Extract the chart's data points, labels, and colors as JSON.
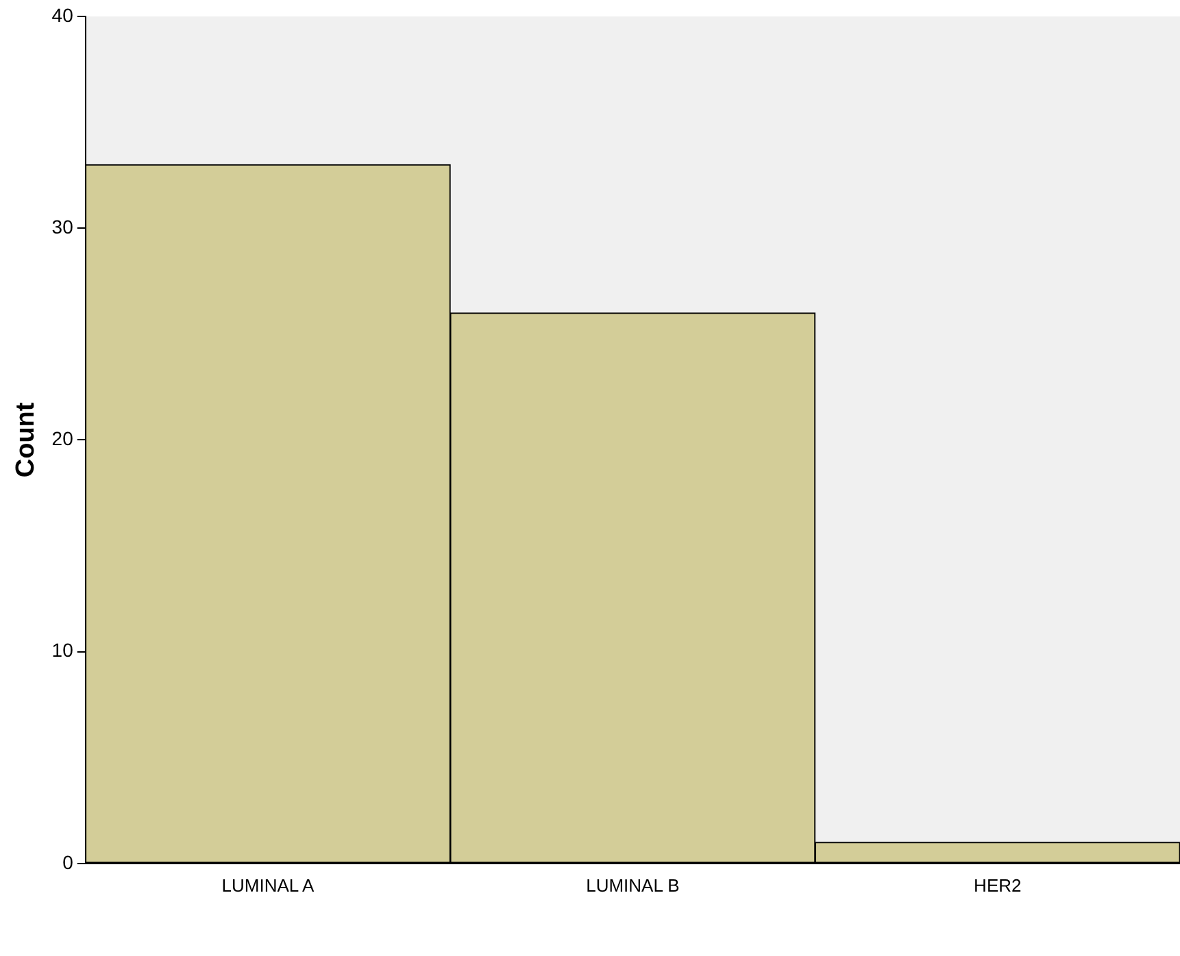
{
  "chart_data": {
    "type": "bar",
    "ylabel": "Count",
    "categories": [
      "LUMINAL A",
      "LUMINAL B",
      "HER2"
    ],
    "values": [
      33,
      26,
      1
    ],
    "color": "#d3cd98",
    "ylim": [
      0,
      40
    ],
    "yticks": [
      0,
      10,
      20,
      30,
      40
    ],
    "grid": false,
    "legend": false
  }
}
